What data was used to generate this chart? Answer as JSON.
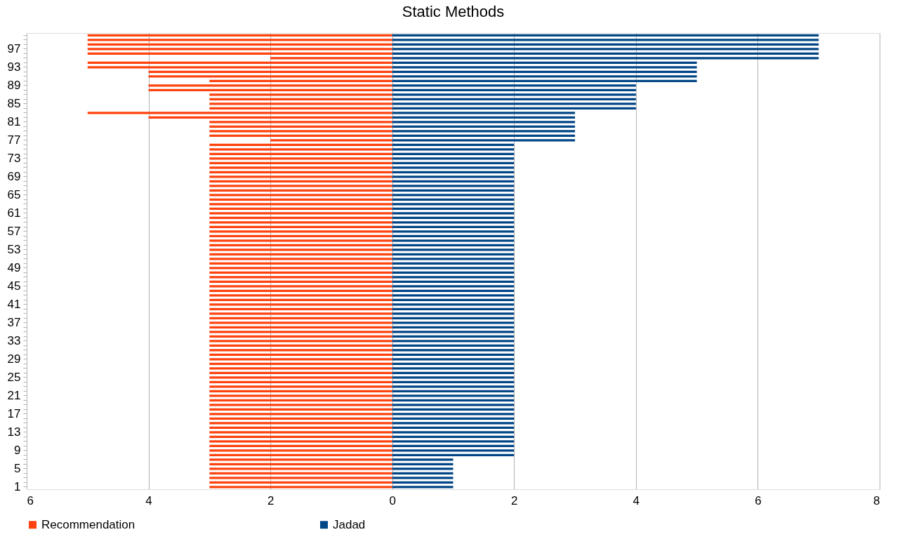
{
  "chart_data": {
    "type": "bar",
    "orientation": "horizontal",
    "title": "Static Methods",
    "categories": [
      null,
      null,
      null,
      "97",
      null,
      null,
      null,
      "93",
      null,
      null,
      null,
      "89",
      null,
      null,
      null,
      "85",
      null,
      null,
      null,
      "81",
      null,
      null,
      null,
      "77",
      null,
      null,
      null,
      "73",
      null,
      null,
      null,
      "69",
      null,
      null,
      null,
      "65",
      null,
      null,
      null,
      "61",
      null,
      null,
      null,
      "57",
      null,
      null,
      null,
      "53",
      null,
      null,
      null,
      "49",
      null,
      null,
      null,
      "45",
      null,
      null,
      null,
      "41",
      null,
      null,
      null,
      "37",
      null,
      null,
      null,
      "33",
      null,
      null,
      null,
      "29",
      null,
      null,
      null,
      "25",
      null,
      null,
      null,
      "21",
      null,
      null,
      null,
      "17",
      null,
      null,
      null,
      "13",
      null,
      null,
      null,
      "9",
      null,
      null,
      null,
      "5",
      null,
      null,
      null,
      "1"
    ],
    "series": [
      {
        "name": "Recommendation",
        "color": "#ff420e",
        "values": [
          -5,
          -5,
          -5,
          -5,
          -5,
          -2,
          -5,
          -5,
          -4,
          -4,
          -3,
          -4,
          -4,
          -3,
          -3,
          -3,
          -3,
          -5,
          -4,
          -3,
          -3,
          -3,
          -3,
          -2,
          -3,
          -3,
          -3,
          -3,
          -3,
          -3,
          -3,
          -3,
          -3,
          -3,
          -3,
          -3,
          -3,
          -3,
          -3,
          -3,
          -3,
          -3,
          -3,
          -3,
          -3,
          -3,
          -3,
          -3,
          -3,
          -3,
          -3,
          -3,
          -3,
          -3,
          -3,
          -3,
          -3,
          -3,
          -3,
          -3,
          -3,
          -3,
          -3,
          -3,
          -3,
          -3,
          -3,
          -3,
          -3,
          -3,
          -3,
          -3,
          -3,
          -3,
          -3,
          -3,
          -3,
          -3,
          -3,
          -3,
          -3,
          -3,
          -3,
          -3,
          -3,
          -3,
          -3,
          -3,
          -3,
          -3,
          -3,
          -3,
          -3,
          -3,
          -3,
          -3,
          -3,
          -3,
          -3,
          -3
        ]
      },
      {
        "name": "Jadad",
        "color": "#004586",
        "values": [
          7,
          7,
          7,
          7,
          7,
          7,
          5,
          5,
          5,
          5,
          5,
          4,
          4,
          4,
          4,
          4,
          4,
          3,
          3,
          3,
          3,
          3,
          3,
          3,
          2,
          2,
          2,
          2,
          2,
          2,
          2,
          2,
          2,
          2,
          2,
          2,
          2,
          2,
          2,
          2,
          2,
          2,
          2,
          2,
          2,
          2,
          2,
          2,
          2,
          2,
          2,
          2,
          2,
          2,
          2,
          2,
          2,
          2,
          2,
          2,
          2,
          2,
          2,
          2,
          2,
          2,
          2,
          2,
          2,
          2,
          2,
          2,
          2,
          2,
          2,
          2,
          2,
          2,
          2,
          2,
          2,
          2,
          2,
          2,
          2,
          2,
          2,
          2,
          2,
          2,
          2,
          2,
          2,
          1,
          1,
          1,
          1,
          1,
          1,
          1
        ]
      }
    ],
    "xlim": [
      -6,
      8
    ],
    "xticks": [
      {
        "value": -6,
        "label": "6"
      },
      {
        "value": -4,
        "label": "4"
      },
      {
        "value": -2,
        "label": "2"
      },
      0,
      2,
      4,
      6,
      8
    ],
    "grid": "x",
    "legend": "bottom",
    "stacked": true
  }
}
